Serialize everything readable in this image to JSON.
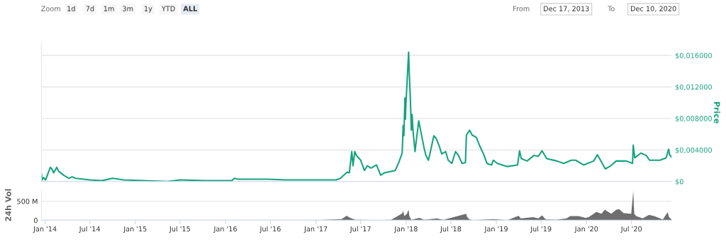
{
  "chart_data": [
    {
      "type": "line",
      "ylabel": "Price",
      "annotations": [
        "Zoom",
        "1d",
        "7d",
        "1m",
        "3m",
        "1y",
        "YTD",
        "ALL",
        "From",
        "Dec 17, 2013",
        "To",
        "Dec 10, 2020"
      ],
      "series": [
        {
          "color": "#16a37f",
          "x": [
            "2013-12-17",
            "2013-12-20",
            "2013-12-26",
            "2014-01-03",
            "2014-01-22",
            "2014-01-28",
            "2014-02-05",
            "2014-02-17",
            "2014-02-25",
            "2014-03-17",
            "2014-04-08",
            "2014-04-20",
            "2014-05-05",
            "2014-07-01",
            "2014-08-18",
            "2014-10-01",
            "2014-11-15",
            "2015-05-12",
            "2015-07-01",
            "2015-10-12",
            "2016-01-26",
            "2016-02-06",
            "2016-02-20",
            "2016-06-18",
            "2016-09-01",
            "2017-03-24",
            "2017-04-10",
            "2017-04-20",
            "2017-05-08",
            "2017-05-16",
            "2017-05-26",
            "2017-05-31",
            "2017-06-07",
            "2017-06-14",
            "2017-07-01",
            "2017-07-16",
            "2017-07-28",
            "2017-08-12",
            "2017-09-03",
            "2017-09-20",
            "2017-10-05",
            "2017-11-18",
            "2017-12-02",
            "2017-12-16",
            "2017-12-20",
            "2017-12-23",
            "2017-12-27",
            "2017-12-29",
            "2017-12-31",
            "2018-01-11",
            "2018-01-14",
            "2018-01-18",
            "2018-01-22",
            "2018-01-25",
            "2018-01-29",
            "2018-02-06",
            "2018-02-10",
            "2018-02-21",
            "2018-03-01",
            "2018-03-15",
            "2018-03-22",
            "2018-04-01",
            "2018-04-10",
            "2018-04-23",
            "2018-05-02",
            "2018-05-15",
            "2018-05-25",
            "2018-06-10",
            "2018-06-20",
            "2018-07-05",
            "2018-07-20",
            "2018-08-01",
            "2018-08-15",
            "2018-08-29",
            "2018-09-02",
            "2018-09-15",
            "2018-09-25",
            "2018-10-12",
            "2018-10-26",
            "2018-11-10",
            "2018-11-24",
            "2018-12-13",
            "2018-12-20",
            "2019-01-05",
            "2019-02-14",
            "2019-03-28",
            "2019-04-05",
            "2019-04-12",
            "2019-05-05",
            "2019-06-02",
            "2019-06-20",
            "2019-07-05",
            "2019-07-24",
            "2019-09-03",
            "2019-10-01",
            "2019-10-31",
            "2019-11-18",
            "2019-12-20",
            "2020-01-30",
            "2020-02-14",
            "2020-02-28",
            "2020-03-17",
            "2020-04-08",
            "2020-04-30",
            "2020-06-10",
            "2020-07-05",
            "2020-07-08",
            "2020-07-14",
            "2020-08-08",
            "2020-08-30",
            "2020-09-12",
            "2020-10-24",
            "2020-11-18",
            "2020-11-28",
            "2020-12-02",
            "2020-12-10"
          ],
          "values": [
            0.001,
            0.0002,
            0.0005,
            0.0002,
            0.0018,
            0.0016,
            0.0011,
            0.0018,
            0.0013,
            0.0008,
            0.0004,
            0.0006,
            0.0004,
            0.0002,
            0.0001,
            0.0004,
            0.0002,
            0,
            0.0002,
            0.0001,
            0.0001,
            0.0004,
            0.0003,
            0.0003,
            0.0002,
            0.0002,
            0.0004,
            0.0007,
            0.0012,
            0.0011,
            0.0038,
            0.002,
            0.0038,
            0.0033,
            0.0027,
            0.0014,
            0.002,
            0.0017,
            0.0021,
            0.0008,
            0.0011,
            0.0014,
            0.0024,
            0.0036,
            0.0071,
            0.0058,
            0.0106,
            0.0079,
            0.0097,
            0.0164,
            0.0136,
            0.0106,
            0.0065,
            0.0085,
            0.0064,
            0.0038,
            0.0049,
            0.0077,
            0.0064,
            0.0042,
            0.0033,
            0.0027,
            0.0039,
            0.0058,
            0.0055,
            0.0045,
            0.0035,
            0.0038,
            0.0027,
            0.0023,
            0.0038,
            0.0033,
            0.0023,
            0.0024,
            0.0059,
            0.0065,
            0.0059,
            0.0056,
            0.0045,
            0.0035,
            0.0023,
            0.0021,
            0.0027,
            0.0023,
            0.0019,
            0.0021,
            0.0039,
            0.0029,
            0.0026,
            0.0033,
            0.0032,
            0.0039,
            0.0029,
            0.0026,
            0.0023,
            0.0027,
            0.0027,
            0.0021,
            0.0026,
            0.0034,
            0.0026,
            0.0016,
            0.002,
            0.0026,
            0.0026,
            0.0023,
            0.0046,
            0.003,
            0.0036,
            0.0033,
            0.0027,
            0.0027,
            0.003,
            0.0041,
            0.0034,
            0.0031
          ]
        }
      ],
      "xlim": [
        "2013-12-17",
        "2020-12-10"
      ],
      "ylim": [
        0,
        0.0175
      ],
      "yticks": [
        {
          "value": 0,
          "label": "$0"
        },
        {
          "value": 0.004,
          "label": "$0,004000"
        },
        {
          "value": 0.008,
          "label": "$0,008000"
        },
        {
          "value": 0.012,
          "label": "$0,012000"
        },
        {
          "value": 0.016,
          "label": "$0,016000"
        }
      ],
      "tick_labels": "y",
      "grid": "y"
    },
    {
      "type": "area",
      "ylabel": "24h Vol",
      "series": [
        {
          "color": "#6e6e6e",
          "x": [
            "2013-12-17",
            "2014-06-01",
            "2015-06-01",
            "2016-06-01",
            "2017-01-01",
            "2017-04-15",
            "2017-05-05",
            "2017-05-20",
            "2017-06-10",
            "2017-07-01",
            "2017-09-01",
            "2017-11-01",
            "2017-12-16",
            "2017-12-20",
            "2017-12-25",
            "2018-01-04",
            "2018-01-11",
            "2018-01-14",
            "2018-01-22",
            "2018-02-24",
            "2018-03-15",
            "2018-05-05",
            "2018-06-01",
            "2018-09-01",
            "2018-09-05",
            "2018-09-15",
            "2018-10-01",
            "2018-12-20",
            "2019-02-15",
            "2019-04-01",
            "2019-04-10",
            "2019-05-30",
            "2019-06-20",
            "2019-07-05",
            "2019-07-20",
            "2019-08-30",
            "2019-10-12",
            "2019-10-27",
            "2019-11-30",
            "2019-12-28",
            "2020-01-10",
            "2020-02-10",
            "2020-03-01",
            "2020-03-15",
            "2020-04-10",
            "2020-04-30",
            "2020-05-12",
            "2020-05-30",
            "2020-06-30",
            "2020-07-08",
            "2020-07-12",
            "2020-07-20",
            "2020-08-15",
            "2020-09-10",
            "2020-10-01",
            "2020-11-05",
            "2020-11-24",
            "2020-11-30",
            "2020-12-10"
          ],
          "values": [
            0,
            0,
            0,
            0,
            0,
            30,
            120,
            60,
            10,
            10,
            0,
            10,
            180,
            250,
            110,
            170,
            280,
            110,
            10,
            60,
            10,
            50,
            10,
            170,
            80,
            20,
            0,
            30,
            0,
            120,
            50,
            80,
            50,
            130,
            20,
            10,
            50,
            110,
            110,
            60,
            80,
            220,
            170,
            280,
            170,
            280,
            290,
            190,
            170,
            780,
            170,
            110,
            50,
            140,
            110,
            20,
            210,
            80,
            20
          ]
        }
      ],
      "xlim": [
        "2013-12-17",
        "2020-12-10"
      ],
      "ylim": [
        0,
        800
      ],
      "yticks": [
        0,
        {
          "value": 500,
          "label": "500 M"
        }
      ],
      "xticks": [
        {
          "value": "2014-01-01",
          "label": "Jan '14"
        },
        {
          "value": "2014-07-01",
          "label": "Jul '14"
        },
        {
          "value": "2015-01-01",
          "label": "Jan '15"
        },
        {
          "value": "2015-07-01",
          "label": "Jul '15"
        },
        {
          "value": "2016-01-01",
          "label": "Jan '16"
        },
        {
          "value": "2016-07-01",
          "label": "Jul '16"
        },
        {
          "value": "2017-01-01",
          "label": "Jan '17"
        },
        {
          "value": "2017-07-01",
          "label": "Jul '17"
        },
        {
          "value": "2018-01-01",
          "label": "Jan '18"
        },
        {
          "value": "2018-07-01",
          "label": "Jul '18"
        },
        {
          "value": "2019-01-01",
          "label": "Jan '19"
        },
        {
          "value": "2019-07-01",
          "label": "Jul '19"
        },
        {
          "value": "2020-01-01",
          "label": "Jan '20"
        },
        {
          "value": "2020-07-01",
          "label": "Jul '20"
        }
      ],
      "grid": "y"
    }
  ]
}
